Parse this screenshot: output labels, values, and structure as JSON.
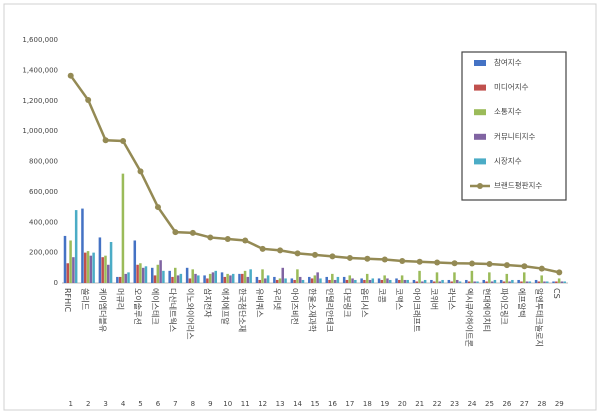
{
  "chart_data": {
    "type": "bar",
    "categories": [
      "RFHIC",
      "쏠리드",
      "케이엠더블유",
      "머큐리",
      "오이솔루션",
      "에이스테크",
      "다산네트웍스",
      "이노와이어리스",
      "삼지전자",
      "에치에프알",
      "한국첨단소재",
      "유비쿼스",
      "우리넷",
      "아이즈비전",
      "한울소재과학",
      "인텔리안테크",
      "다보링크",
      "옵티시스",
      "코콤",
      "코맥스",
      "아이크래프트",
      "코위버",
      "라닉스",
      "엑시큐어하이트론",
      "현대에이치티",
      "파이오링크",
      "에프알텍",
      "알엔투테크놀로지",
      "CS"
    ],
    "category_numbers": [
      1,
      2,
      3,
      4,
      5,
      6,
      7,
      8,
      9,
      10,
      11,
      12,
      13,
      14,
      15,
      16,
      17,
      18,
      19,
      20,
      21,
      22,
      23,
      24,
      25,
      26,
      27,
      28,
      29
    ],
    "series": [
      {
        "name": "참여지수",
        "color": "#4472c4",
        "type": "bar",
        "values": [
          310000,
          490000,
          300000,
          40000,
          280000,
          100000,
          80000,
          100000,
          50000,
          70000,
          60000,
          40000,
          40000,
          30000,
          40000,
          40000,
          40000,
          30000,
          30000,
          30000,
          20000,
          20000,
          20000,
          20000,
          20000,
          20000,
          20000,
          20000,
          10000
        ]
      },
      {
        "name": "미디어지수",
        "color": "#c0504d",
        "type": "bar",
        "values": [
          130000,
          200000,
          170000,
          40000,
          120000,
          50000,
          40000,
          30000,
          30000,
          40000,
          60000,
          20000,
          20000,
          20000,
          30000,
          20000,
          20000,
          20000,
          20000,
          20000,
          10000,
          10000,
          10000,
          10000,
          10000,
          10000,
          10000,
          10000,
          10000
        ]
      },
      {
        "name": "소통지수",
        "color": "#9bbb59",
        "type": "bar",
        "values": [
          280000,
          210000,
          180000,
          720000,
          130000,
          120000,
          100000,
          90000,
          60000,
          60000,
          80000,
          90000,
          30000,
          90000,
          50000,
          60000,
          50000,
          60000,
          50000,
          50000,
          80000,
          70000,
          70000,
          80000,
          70000,
          60000,
          70000,
          50000,
          30000
        ]
      },
      {
        "name": "커뮤니티지수",
        "color": "#8064a2",
        "type": "bar",
        "values": [
          170000,
          180000,
          120000,
          60000,
          100000,
          150000,
          50000,
          60000,
          70000,
          50000,
          40000,
          30000,
          100000,
          40000,
          70000,
          20000,
          30000,
          20000,
          30000,
          20000,
          10000,
          10000,
          20000,
          10000,
          10000,
          10000,
          10000,
          10000,
          10000
        ]
      },
      {
        "name": "시장지수",
        "color": "#4bacc6",
        "type": "bar",
        "values": [
          480000,
          200000,
          270000,
          70000,
          110000,
          80000,
          60000,
          50000,
          80000,
          60000,
          90000,
          50000,
          30000,
          20000,
          30000,
          40000,
          20000,
          30000,
          20000,
          20000,
          20000,
          20000,
          10000,
          10000,
          20000,
          20000,
          10000,
          10000,
          10000
        ]
      },
      {
        "name": "브랜드평판지수",
        "color": "#948a54",
        "type": "line",
        "values": [
          1365000,
          1205000,
          940000,
          935000,
          735000,
          500000,
          335000,
          330000,
          300000,
          290000,
          280000,
          225000,
          215000,
          195000,
          185000,
          175000,
          165000,
          160000,
          155000,
          145000,
          140000,
          135000,
          130000,
          128000,
          125000,
          118000,
          110000,
          95000,
          70000
        ]
      }
    ],
    "ylim": [
      0,
      1600000
    ],
    "yticks": [
      {
        "value": 0,
        "label": "0"
      },
      {
        "value": 200000,
        "label": "200,000"
      },
      {
        "value": 400000,
        "label": "400,000"
      },
      {
        "value": 600000,
        "label": "600,000"
      },
      {
        "value": 800000,
        "label": "800,000"
      },
      {
        "value": 1000000,
        "label": "1,000,000"
      },
      {
        "value": 1200000,
        "label": "1,200,000"
      },
      {
        "value": 1400000,
        "label": "1,400,000"
      },
      {
        "value": 1600000,
        "label": "1,600,000"
      }
    ],
    "grid": false
  }
}
